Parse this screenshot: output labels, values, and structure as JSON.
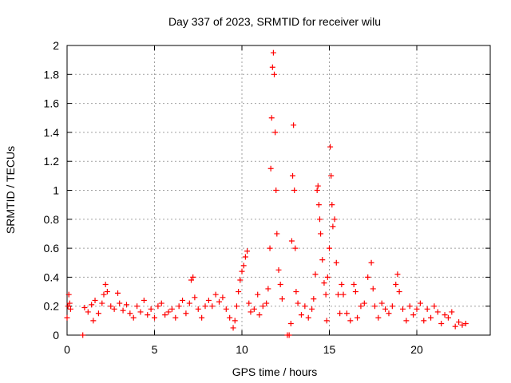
{
  "chart_data": {
    "type": "scatter",
    "title": "Day 337 of 2023, SRMTID for receiver wilu",
    "xlabel": "GPS time / hours",
    "ylabel": "SRMTID / TECUs",
    "xlim": [
      0,
      24.2
    ],
    "ylim": [
      0,
      2
    ],
    "x_ticks": [
      0,
      5,
      10,
      15,
      20
    ],
    "x_tick_labels": [
      "0",
      "5",
      "10",
      "15",
      "20"
    ],
    "y_ticks": [
      0,
      0.2,
      0.4,
      0.6,
      0.8,
      1,
      1.2,
      1.4,
      1.6,
      1.8,
      2
    ],
    "y_tick_labels": [
      "0",
      "0.2",
      "0.4",
      "0.6",
      "0.8",
      "1",
      "1.2",
      "1.4",
      "1.6",
      "1.8",
      "2"
    ],
    "grid": true,
    "marker": "+",
    "color": "#ff0000",
    "series": [
      {
        "name": "SRMTID",
        "points": [
          [
            0.0,
            0.12
          ],
          [
            0.05,
            0.2
          ],
          [
            0.1,
            0.28
          ],
          [
            0.15,
            0.22
          ],
          [
            0.2,
            0.18
          ],
          [
            0.9,
            0.0
          ],
          [
            1.0,
            0.19
          ],
          [
            1.2,
            0.16
          ],
          [
            1.4,
            0.21
          ],
          [
            1.5,
            0.1
          ],
          [
            1.6,
            0.24
          ],
          [
            1.8,
            0.15
          ],
          [
            2.0,
            0.22
          ],
          [
            2.1,
            0.28
          ],
          [
            2.2,
            0.35
          ],
          [
            2.3,
            0.3
          ],
          [
            2.5,
            0.2
          ],
          [
            2.7,
            0.18
          ],
          [
            2.9,
            0.29
          ],
          [
            3.0,
            0.22
          ],
          [
            3.2,
            0.17
          ],
          [
            3.4,
            0.21
          ],
          [
            3.6,
            0.15
          ],
          [
            3.8,
            0.12
          ],
          [
            4.0,
            0.2
          ],
          [
            4.2,
            0.16
          ],
          [
            4.4,
            0.24
          ],
          [
            4.6,
            0.14
          ],
          [
            4.8,
            0.18
          ],
          [
            5.0,
            0.12
          ],
          [
            5.2,
            0.2
          ],
          [
            5.4,
            0.22
          ],
          [
            5.6,
            0.14
          ],
          [
            5.8,
            0.16
          ],
          [
            6.0,
            0.18
          ],
          [
            6.2,
            0.12
          ],
          [
            6.4,
            0.2
          ],
          [
            6.6,
            0.24
          ],
          [
            6.8,
            0.15
          ],
          [
            7.0,
            0.22
          ],
          [
            7.1,
            0.38
          ],
          [
            7.2,
            0.4
          ],
          [
            7.3,
            0.26
          ],
          [
            7.5,
            0.18
          ],
          [
            7.7,
            0.12
          ],
          [
            7.9,
            0.2
          ],
          [
            8.1,
            0.24
          ],
          [
            8.3,
            0.2
          ],
          [
            8.5,
            0.28
          ],
          [
            8.7,
            0.23
          ],
          [
            8.9,
            0.26
          ],
          [
            9.1,
            0.18
          ],
          [
            9.3,
            0.12
          ],
          [
            9.5,
            0.05
          ],
          [
            9.6,
            0.1
          ],
          [
            9.7,
            0.2
          ],
          [
            9.8,
            0.3
          ],
          [
            9.9,
            0.38
          ],
          [
            10.0,
            0.44
          ],
          [
            10.1,
            0.48
          ],
          [
            10.2,
            0.54
          ],
          [
            10.3,
            0.58
          ],
          [
            10.4,
            0.22
          ],
          [
            10.5,
            0.16
          ],
          [
            10.7,
            0.18
          ],
          [
            10.9,
            0.28
          ],
          [
            11.0,
            0.14
          ],
          [
            11.2,
            0.2
          ],
          [
            11.4,
            0.22
          ],
          [
            11.5,
            0.32
          ],
          [
            11.6,
            0.6
          ],
          [
            11.65,
            1.15
          ],
          [
            11.7,
            1.5
          ],
          [
            11.75,
            1.85
          ],
          [
            11.8,
            1.95
          ],
          [
            11.85,
            1.8
          ],
          [
            11.9,
            1.4
          ],
          [
            11.95,
            1.0
          ],
          [
            12.0,
            0.7
          ],
          [
            12.1,
            0.45
          ],
          [
            12.2,
            0.35
          ],
          [
            12.3,
            0.25
          ],
          [
            12.6,
            0.0
          ],
          [
            12.7,
            0.0
          ],
          [
            12.8,
            0.08
          ],
          [
            12.85,
            0.65
          ],
          [
            12.9,
            1.1
          ],
          [
            12.95,
            1.45
          ],
          [
            13.0,
            1.0
          ],
          [
            13.05,
            0.6
          ],
          [
            13.1,
            0.3
          ],
          [
            13.2,
            0.22
          ],
          [
            13.4,
            0.14
          ],
          [
            13.6,
            0.2
          ],
          [
            13.8,
            0.12
          ],
          [
            14.0,
            0.18
          ],
          [
            14.1,
            0.25
          ],
          [
            14.2,
            0.42
          ],
          [
            14.3,
            1.0
          ],
          [
            14.35,
            1.03
          ],
          [
            14.4,
            0.9
          ],
          [
            14.45,
            0.8
          ],
          [
            14.5,
            0.7
          ],
          [
            14.6,
            0.52
          ],
          [
            14.7,
            0.36
          ],
          [
            14.8,
            0.28
          ],
          [
            14.85,
            0.1
          ],
          [
            14.9,
            0.4
          ],
          [
            15.0,
            0.6
          ],
          [
            15.05,
            1.3
          ],
          [
            15.1,
            1.1
          ],
          [
            15.15,
            0.9
          ],
          [
            15.2,
            0.75
          ],
          [
            15.3,
            0.8
          ],
          [
            15.4,
            0.5
          ],
          [
            15.5,
            0.28
          ],
          [
            15.6,
            0.15
          ],
          [
            15.7,
            0.35
          ],
          [
            15.8,
            0.28
          ],
          [
            16.0,
            0.15
          ],
          [
            16.2,
            0.1
          ],
          [
            16.4,
            0.35
          ],
          [
            16.5,
            0.3
          ],
          [
            16.6,
            0.12
          ],
          [
            16.8,
            0.2
          ],
          [
            17.0,
            0.22
          ],
          [
            17.2,
            0.4
          ],
          [
            17.4,
            0.5
          ],
          [
            17.5,
            0.32
          ],
          [
            17.6,
            0.2
          ],
          [
            17.8,
            0.12
          ],
          [
            18.0,
            0.22
          ],
          [
            18.2,
            0.18
          ],
          [
            18.4,
            0.15
          ],
          [
            18.6,
            0.2
          ],
          [
            18.8,
            0.35
          ],
          [
            18.9,
            0.42
          ],
          [
            19.0,
            0.3
          ],
          [
            19.2,
            0.18
          ],
          [
            19.4,
            0.1
          ],
          [
            19.6,
            0.2
          ],
          [
            19.8,
            0.14
          ],
          [
            20.0,
            0.18
          ],
          [
            20.2,
            0.22
          ],
          [
            20.4,
            0.1
          ],
          [
            20.6,
            0.18
          ],
          [
            20.8,
            0.12
          ],
          [
            21.0,
            0.2
          ],
          [
            21.2,
            0.16
          ],
          [
            21.4,
            0.08
          ],
          [
            21.6,
            0.14
          ],
          [
            21.8,
            0.12
          ],
          [
            22.0,
            0.16
          ],
          [
            22.2,
            0.06
          ],
          [
            22.4,
            0.09
          ],
          [
            22.6,
            0.07
          ],
          [
            22.8,
            0.08
          ]
        ]
      }
    ]
  }
}
